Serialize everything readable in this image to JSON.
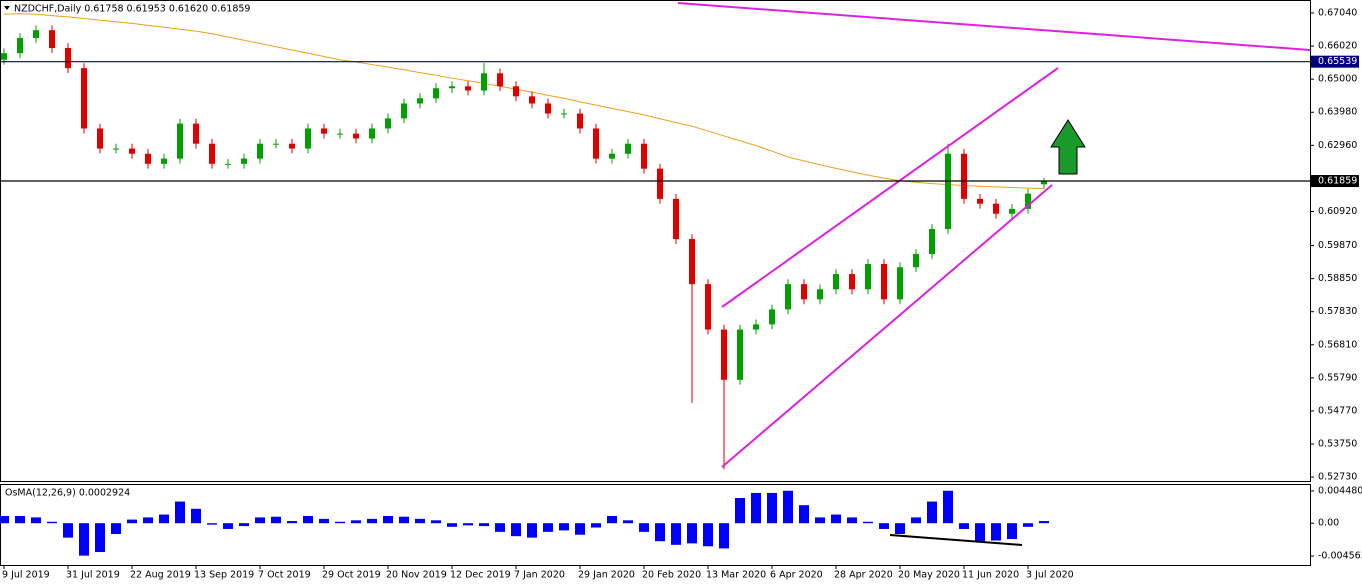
{
  "chart_data": [
    {
      "type": "candlestick",
      "title": "NZDCHF,Daily  0.61758 0.61953 0.61620 0.61859",
      "categories": [
        "9 Jul 2019",
        null,
        null,
        null,
        "31 Jul 2019",
        null,
        null,
        null,
        "22 Aug 2019",
        null,
        null,
        null,
        "13 Sep 2019",
        null,
        null,
        null,
        "7 Oct 2019",
        null,
        null,
        null,
        "29 Oct 2019",
        null,
        null,
        null,
        "20 Nov 2019",
        null,
        null,
        null,
        "12 Dec 2019",
        null,
        null,
        null,
        "7 Jan 2020",
        null,
        null,
        null,
        "29 Jan 2020",
        null,
        null,
        null,
        "20 Feb 2020",
        null,
        null,
        null,
        "13 Mar 2020",
        null,
        null,
        null,
        "6 Apr 2020",
        null,
        null,
        null,
        "28 Apr 2020",
        null,
        null,
        null,
        "20 May 2020",
        null,
        null,
        null,
        "11 Jun 2020",
        null,
        null,
        null,
        "3 Jul 2020",
        null
      ],
      "open": [
        0.656,
        0.658,
        0.6627,
        0.6651,
        0.6596,
        0.6534,
        0.6348,
        0.6286,
        0.6286,
        0.627,
        0.6239,
        0.6255,
        0.6363,
        0.6301,
        0.6239,
        0.6239,
        0.6255,
        0.6301,
        0.6301,
        0.6286,
        0.6348,
        0.6332,
        0.6332,
        0.6317,
        0.6348,
        0.6379,
        0.6425,
        0.6441,
        0.6472,
        0.6478,
        0.6465,
        0.6518,
        0.6478,
        0.6447,
        0.6425,
        0.6394,
        0.6394,
        0.6348,
        0.6255,
        0.627,
        0.6301,
        0.6224,
        0.6131,
        0.6007,
        0.5868,
        0.5728,
        0.5573,
        0.5728,
        0.5744,
        0.579,
        0.5868,
        0.5821,
        0.5852,
        0.5899,
        0.5852,
        0.593,
        0.5821,
        0.592,
        0.5961,
        0.6038,
        0.627,
        0.6131,
        0.6116,
        0.6085,
        0.61,
        0.61758
      ],
      "high": [
        0.6595,
        0.6642,
        0.6666,
        0.6666,
        0.6611,
        0.6549,
        0.6363,
        0.6301,
        0.6301,
        0.6285,
        0.627,
        0.6378,
        0.6378,
        0.6316,
        0.6254,
        0.627,
        0.6316,
        0.6316,
        0.6316,
        0.6363,
        0.6363,
        0.6347,
        0.6347,
        0.6363,
        0.6394,
        0.644,
        0.6456,
        0.6487,
        0.6493,
        0.6493,
        0.655,
        0.6533,
        0.6493,
        0.6462,
        0.644,
        0.6409,
        0.6409,
        0.6363,
        0.6285,
        0.6316,
        0.6316,
        0.6239,
        0.6146,
        0.6022,
        0.5883,
        0.5743,
        0.5743,
        0.5759,
        0.5805,
        0.5883,
        0.5883,
        0.5867,
        0.5914,
        0.5914,
        0.5945,
        0.5945,
        0.5935,
        0.5976,
        0.6053,
        0.6301,
        0.6285,
        0.6146,
        0.6131,
        0.6115,
        0.6162,
        0.61953
      ],
      "low": [
        0.6545,
        0.6565,
        0.6612,
        0.6581,
        0.6519,
        0.6333,
        0.6271,
        0.6271,
        0.6255,
        0.6224,
        0.6224,
        0.624,
        0.6286,
        0.6224,
        0.6224,
        0.6224,
        0.624,
        0.6286,
        0.6271,
        0.6271,
        0.6317,
        0.6317,
        0.6302,
        0.6302,
        0.6333,
        0.6364,
        0.641,
        0.6426,
        0.6457,
        0.645,
        0.645,
        0.6463,
        0.6432,
        0.641,
        0.6379,
        0.6379,
        0.6333,
        0.624,
        0.624,
        0.6255,
        0.6209,
        0.6116,
        0.5992,
        0.5502,
        0.5713,
        0.5297,
        0.5558,
        0.5713,
        0.5729,
        0.5775,
        0.5806,
        0.5806,
        0.5837,
        0.5837,
        0.5837,
        0.5806,
        0.5806,
        0.5905,
        0.5946,
        0.6023,
        0.6116,
        0.6101,
        0.607,
        0.607,
        0.6085,
        0.6162
      ],
      "close": [
        0.658,
        0.6627,
        0.6651,
        0.6596,
        0.6534,
        0.6348,
        0.6286,
        0.6286,
        0.627,
        0.6239,
        0.6255,
        0.6363,
        0.6301,
        0.6239,
        0.6239,
        0.6255,
        0.6301,
        0.6301,
        0.6286,
        0.6348,
        0.6332,
        0.6332,
        0.6317,
        0.6348,
        0.6379,
        0.6425,
        0.6441,
        0.6472,
        0.6478,
        0.6465,
        0.6518,
        0.6478,
        0.6447,
        0.6425,
        0.6394,
        0.6394,
        0.6348,
        0.6255,
        0.627,
        0.6301,
        0.6224,
        0.6131,
        0.6007,
        0.5868,
        0.5728,
        0.5573,
        0.5728,
        0.5744,
        0.579,
        0.5868,
        0.5821,
        0.5852,
        0.5899,
        0.5852,
        0.593,
        0.5821,
        0.592,
        0.5961,
        0.6038,
        0.627,
        0.6131,
        0.6116,
        0.6085,
        0.61,
        0.6147,
        0.61859
      ],
      "up_color": "#00a000",
      "down_color": "#e00000",
      "ma": {
        "color": "#f0a020",
        "values": [
          0.67,
          0.6702,
          0.67,
          0.6696,
          0.6692,
          0.6687,
          0.6682,
          0.6677,
          0.6672,
          0.6666,
          0.666,
          0.6654,
          0.6648,
          0.664,
          0.663,
          0.662,
          0.661,
          0.66,
          0.659,
          0.658,
          0.657,
          0.656,
          0.6553,
          0.6545,
          0.6537,
          0.6529,
          0.652,
          0.6512,
          0.6503,
          0.6495,
          0.6487,
          0.6478,
          0.6469,
          0.646,
          0.645,
          0.6441,
          0.643,
          0.642,
          0.641,
          0.64,
          0.639,
          0.6378,
          0.6366,
          0.6355,
          0.634,
          0.6325,
          0.631,
          0.6295,
          0.6278,
          0.626,
          0.6248,
          0.6236,
          0.6225,
          0.6214,
          0.6204,
          0.6195,
          0.6187,
          0.6182,
          0.6178,
          0.6175,
          0.6172,
          0.617,
          0.6168,
          0.6166,
          0.6164,
          0.6162
        ]
      },
      "hlines": [
        {
          "value": 0.65539,
          "color": "#000080"
        },
        {
          "value": 0.61859,
          "color": "#000000"
        }
      ],
      "ylim": [
        0.5261,
        0.6741
      ],
      "yticks": [
        {
          "value": 0.6704,
          "label": "0.67040"
        },
        {
          "value": 0.6602,
          "label": "0.66020"
        },
        {
          "value": 0.65,
          "label": "0.65000"
        },
        {
          "value": 0.6398,
          "label": "0.63980"
        },
        {
          "value": 0.6296,
          "label": "0.62960"
        },
        {
          "value": 0.6092,
          "label": "0.60920"
        },
        {
          "value": 0.5987,
          "label": "0.59870"
        },
        {
          "value": 0.5885,
          "label": "0.58850"
        },
        {
          "value": 0.5783,
          "label": "0.57830"
        },
        {
          "value": 0.5681,
          "label": "0.56810"
        },
        {
          "value": 0.5579,
          "label": "0.55790"
        },
        {
          "value": 0.5477,
          "label": "0.54770"
        },
        {
          "value": 0.5375,
          "label": "0.53750"
        },
        {
          "value": 0.5273,
          "label": "0.52730"
        }
      ]
    },
    {
      "type": "bar",
      "title": "OsMA(12,26,9) 0.0002924",
      "color": "#0000ff",
      "values": [
        0.001,
        0.001,
        0.0008,
        0.0002,
        -0.002,
        -0.0045,
        -0.004,
        -0.0015,
        0.0005,
        0.0008,
        0.0012,
        0.003,
        0.002,
        -0.0002,
        -0.0008,
        -0.0004,
        0.0008,
        0.0009,
        0.0003,
        0.001,
        0.0006,
        0.0002,
        0.0004,
        0.0006,
        0.001,
        0.0009,
        0.0006,
        0.0004,
        -0.0005,
        -0.0003,
        -0.0004,
        -0.0012,
        -0.0018,
        -0.002,
        -0.0012,
        -0.001,
        -0.0016,
        -0.0006,
        0.001,
        0.0004,
        -0.0012,
        -0.0025,
        -0.003,
        -0.0028,
        -0.0032,
        -0.0035,
        0.0035,
        0.0042,
        0.0042,
        0.0045,
        0.0025,
        0.0008,
        0.0012,
        0.0008,
        0.0002,
        -0.0008,
        -0.0015,
        0.0008,
        0.003,
        0.0045,
        -0.0008,
        -0.0025,
        -0.0024,
        -0.0022,
        -0.0005,
        0.0003
      ],
      "ylim": [
        -0.0058,
        0.0053
      ],
      "yticks": [
        0.0044804,
        {
          "value": 0,
          "label": "0.00"
        },
        -0.004563
      ]
    }
  ]
}
